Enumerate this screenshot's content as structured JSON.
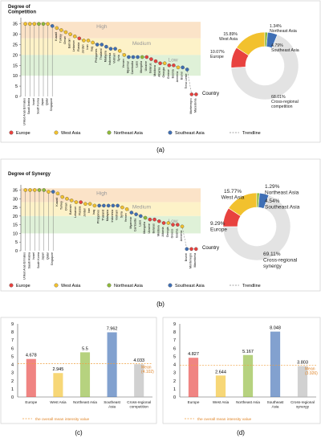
{
  "colors": {
    "europe": "#e8423f",
    "west_asia": "#f2c12e",
    "northeast_asia": "#8fba3a",
    "southeast_asia": "#3f6fb5",
    "other": "#e3e3e3",
    "band_high": "#fbe3c8",
    "band_medium": "#fdf2c8",
    "band_low": "#dff1d8",
    "trend": "#888888"
  },
  "panel_labels": [
    "(a)",
    "(b)",
    "(c)",
    "(d)"
  ],
  "legend": {
    "items": [
      "Europe",
      "West Asia",
      "Northeast Asia",
      "Southeast Asia"
    ],
    "trendline": "Trendline"
  },
  "chart_data": [
    {
      "type": "scatter",
      "ylabel": "Degree of\nCompetition",
      "xlabel": "Country",
      "ylim": [
        0,
        38
      ],
      "yticks": [
        0,
        5,
        10,
        15,
        20,
        25,
        30,
        35
      ],
      "bands": [
        {
          "label": "High",
          "from": 28,
          "to": 36
        },
        {
          "label": "Medium",
          "from": 20,
          "to": 28
        },
        {
          "label": "Low",
          "from": 10,
          "to": 20
        }
      ],
      "categories": [
        "United Arab Emirates",
        "Saudi Arabia",
        "Israel",
        "South Korea",
        "Japan",
        "Qatar",
        "Singapore",
        "Kuwait",
        "Turkey",
        "Oman",
        "Bahrain",
        "Lebanon",
        "Russia",
        "Jordan",
        "Iran",
        "Iraq",
        "Philippines",
        "Thailand",
        "Malaysia",
        "Indonesia",
        "Vietnam",
        "Syria",
        "Yemen",
        "Myanmar",
        "Cambodia",
        "Laos",
        "Mongolia",
        "Ukraine",
        "Belarus",
        "Moldova",
        "Albania",
        "Georgia",
        "Greece",
        "Bosnia",
        "Armenia",
        "Brunei",
        "Timor-Leste",
        "Montenegro",
        "Macedonia"
      ],
      "values": [
        35,
        35,
        35,
        35,
        35,
        35,
        34,
        33,
        32,
        31,
        30,
        29,
        28,
        27,
        27,
        26,
        25,
        25,
        24,
        23,
        23,
        22,
        20,
        19,
        19,
        19,
        19,
        19,
        18,
        17,
        16,
        16,
        15,
        15,
        14,
        14,
        13,
        1,
        1
      ],
      "groups": [
        "WA",
        "WA",
        "WA",
        "NEA",
        "NEA",
        "WA",
        "SEA",
        "WA",
        "WA",
        "WA",
        "WA",
        "WA",
        "EU",
        "WA",
        "WA",
        "WA",
        "SEA",
        "SEA",
        "SEA",
        "SEA",
        "SEA",
        "WA",
        "WA",
        "SEA",
        "SEA",
        "SEA",
        "NEA",
        "EU",
        "EU",
        "EU",
        "EU",
        "WA",
        "EU",
        "EU",
        "WA",
        "SEA",
        "SEA",
        "EU",
        "EU"
      ]
    },
    {
      "type": "pie",
      "slices": [
        {
          "name": "Europe",
          "value": 10.07
        },
        {
          "name": "West Asia",
          "value": 15.89
        },
        {
          "name": "Northeast Asia",
          "value": 1.34
        },
        {
          "name": "Southeast Asia",
          "value": 4.79
        },
        {
          "name": "Cross-regional competition",
          "value": 68.01
        }
      ],
      "labels": [
        "10.07%\nEurope",
        "15.89%\nWest Asia",
        "1.34%\nNortheast Asia",
        "4.79%\nSoutheast Asia",
        "68.01%\nCross-regional\ncompetition"
      ]
    },
    {
      "type": "scatter",
      "ylabel": "Degree of Synergy",
      "xlabel": "Country",
      "ylim": [
        0,
        38
      ],
      "yticks": [
        0,
        5,
        10,
        15,
        20,
        25,
        30,
        35
      ],
      "bands": [
        {
          "label": "High",
          "from": 28,
          "to": 36
        },
        {
          "label": "Medium",
          "from": 20,
          "to": 28
        },
        {
          "label": "Low",
          "from": 10,
          "to": 20
        }
      ],
      "categories": [
        "United Arab Emirates",
        "Saudi Arabia",
        "Israel",
        "South Korea",
        "Japan",
        "Qatar",
        "Singapore",
        "Kuwait",
        "Turkey",
        "Oman",
        "Bahrain",
        "Lebanon",
        "Russia",
        "Jordan",
        "Iran",
        "Iraq",
        "Philippines",
        "Thailand",
        "Malaysia",
        "Indonesia",
        "Vietnam",
        "Syria",
        "Yemen",
        "Myanmar",
        "Cambodia",
        "Laos",
        "Mongolia",
        "Ukraine",
        "Belarus",
        "Moldova",
        "Albania",
        "Georgia",
        "Greece",
        "Bosnia",
        "Armenia",
        "Brunei",
        "Montenegro",
        "Macedonia"
      ],
      "values": [
        35,
        35,
        35,
        35,
        35,
        34,
        34,
        33,
        31,
        30,
        29,
        28,
        28,
        27,
        27,
        26,
        26,
        26,
        26,
        26,
        26,
        25,
        24,
        22,
        21,
        20,
        19,
        18,
        18,
        17,
        16,
        16,
        15,
        15,
        14,
        1,
        1,
        1
      ],
      "groups": [
        "WA",
        "WA",
        "WA",
        "NEA",
        "NEA",
        "WA",
        "SEA",
        "WA",
        "WA",
        "WA",
        "WA",
        "WA",
        "EU",
        "WA",
        "WA",
        "WA",
        "SEA",
        "SEA",
        "SEA",
        "SEA",
        "SEA",
        "WA",
        "WA",
        "SEA",
        "SEA",
        "SEA",
        "NEA",
        "EU",
        "EU",
        "EU",
        "EU",
        "WA",
        "EU",
        "EU",
        "WA",
        "SEA",
        "EU",
        "EU"
      ]
    },
    {
      "type": "pie",
      "slices": [
        {
          "name": "Europe",
          "value": 9.29
        },
        {
          "name": "West Asia",
          "value": 15.77
        },
        {
          "name": "Northeast Asia",
          "value": 1.29
        },
        {
          "name": "Southeast Asia",
          "value": 4.54
        },
        {
          "name": "Cross-regional synergy",
          "value": 69.11
        }
      ],
      "labels": [
        "9.29%\nEurope",
        "15.77%\nWest Asia",
        "1.29%\nNortheast Asia",
        "4.54%\nSoutheast Asia",
        "69.11%\nCross-regional\nsynergy"
      ]
    },
    {
      "type": "bar",
      "yticks": [
        0,
        1,
        2,
        3,
        4,
        5,
        6,
        7,
        8,
        9
      ],
      "ylim": [
        0,
        9
      ],
      "categories": [
        "Europe",
        "West Asia",
        "Northeast Asia",
        "Southeast\nAsia",
        "Cross-regional\ncompetition"
      ],
      "values": [
        4.678,
        2.945,
        5.5,
        7.962,
        4.033
      ],
      "value_labels": [
        "4.678",
        "2.945",
        "5.5",
        "7.962",
        "4.033"
      ],
      "mean": 4.102,
      "mean_label": "Mean\n(4.102)",
      "legend": "the overall mean intensity value"
    },
    {
      "type": "bar",
      "yticks": [
        0,
        1,
        2,
        3,
        4,
        5,
        6,
        7,
        8,
        9
      ],
      "ylim": [
        0,
        9
      ],
      "categories": [
        "Europe",
        "West Asia",
        "Northeast Asia",
        "Southeast\nAsia",
        "Cross-regional\nsynergy"
      ],
      "values": [
        4.827,
        2.644,
        5.167,
        8.048,
        3.803
      ],
      "value_labels": [
        "4.827",
        "2.644",
        "5.167",
        "8.048",
        "3.803"
      ],
      "mean": 3.926,
      "mean_label": "Mean\n(3.926)",
      "legend": "the overall mean intensity value"
    }
  ]
}
